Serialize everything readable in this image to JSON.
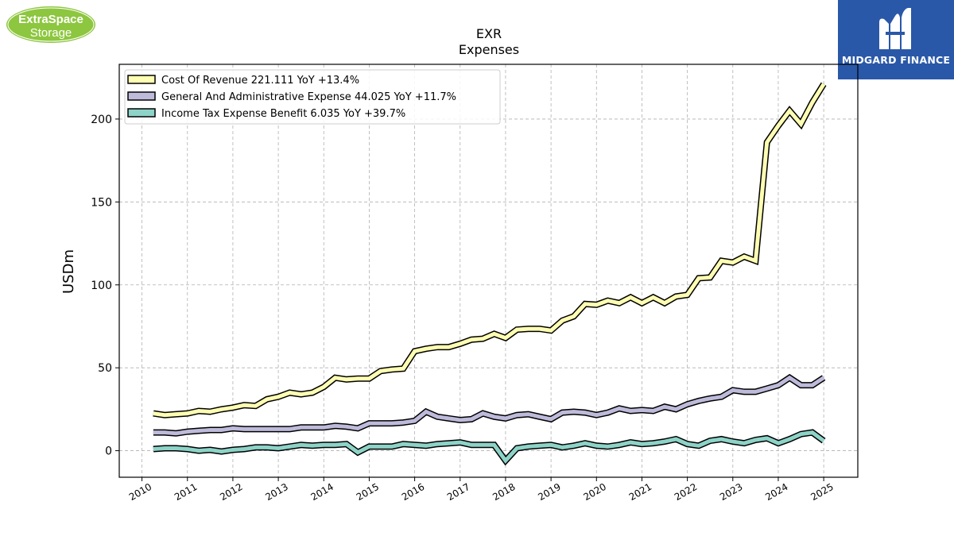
{
  "logos": {
    "left": {
      "line1": "ExtraSpace",
      "line2": "Storage",
      "color": "#8dc63f"
    },
    "right": {
      "text": "MIDGARD FINANCE",
      "color": "#2a58a8"
    }
  },
  "chart_data": {
    "type": "line",
    "title": "EXR",
    "subtitle": "Expenses",
    "ylabel": "USDm",
    "xlabel": "",
    "ylim": [
      -16,
      233
    ],
    "xlim": [
      2009.5,
      2025.75
    ],
    "yticks": [
      0,
      50,
      100,
      150,
      200
    ],
    "xticks": [
      "2010",
      "2011",
      "2012",
      "2013",
      "2014",
      "2015",
      "2016",
      "2017",
      "2018",
      "2019",
      "2020",
      "2021",
      "2022",
      "2023",
      "2024",
      "2025"
    ],
    "grid": true,
    "legend_position": "top-left",
    "x": [
      2010.25,
      2010.5,
      2010.75,
      2011.0,
      2011.25,
      2011.5,
      2011.75,
      2012.0,
      2012.25,
      2012.5,
      2012.75,
      2013.0,
      2013.25,
      2013.5,
      2013.75,
      2014.0,
      2014.25,
      2014.5,
      2014.75,
      2015.0,
      2015.25,
      2015.5,
      2015.75,
      2016.0,
      2016.25,
      2016.5,
      2016.75,
      2017.0,
      2017.25,
      2017.5,
      2017.75,
      2018.0,
      2018.25,
      2018.5,
      2018.75,
      2019.0,
      2019.25,
      2019.5,
      2019.75,
      2020.0,
      2020.25,
      2020.5,
      2020.75,
      2021.0,
      2021.25,
      2021.5,
      2021.75,
      2022.0,
      2022.25,
      2022.5,
      2022.75,
      2023.0,
      2023.25,
      2023.5,
      2023.75,
      2024.0,
      2024.25,
      2024.5,
      2024.75,
      2025.0
    ],
    "series": [
      {
        "name": "Cost Of Revenue",
        "legend": "Cost Of Revenue  221.111 YoY +13.4%",
        "color": "#ffffb3",
        "values": [
          22.5,
          21.5,
          22,
          22.5,
          24,
          23.5,
          25,
          26,
          27.5,
          27,
          31,
          32.5,
          35,
          34,
          35,
          38.5,
          44,
          43,
          43.5,
          43.5,
          48,
          49,
          49.5,
          60,
          61.5,
          62.5,
          62.5,
          64.5,
          67,
          67.5,
          70.5,
          68,
          73,
          73.5,
          73.5,
          72.5,
          78.5,
          81,
          88.5,
          88,
          90.5,
          89,
          92.5,
          89,
          92.5,
          89,
          93,
          94,
          104,
          104.5,
          114.5,
          113.5,
          117,
          114.5,
          186,
          196,
          205,
          197,
          210,
          221.1
        ]
      },
      {
        "name": "General And Administrative Expense",
        "legend": "General And Administrative Expense  44.025 YoY +11.7%",
        "color": "#bebada",
        "values": [
          11,
          11,
          10.5,
          11.5,
          12,
          12.5,
          12.5,
          13.5,
          13,
          13,
          13,
          13,
          13,
          14,
          14,
          14,
          15,
          14.5,
          13.5,
          16.5,
          16.5,
          16.5,
          17,
          18,
          23.5,
          20.5,
          19.5,
          18.5,
          19,
          22.5,
          20.5,
          19.5,
          21.5,
          22,
          20.5,
          19,
          23,
          23.5,
          23,
          21.5,
          23,
          25.5,
          24,
          24.5,
          24,
          26.5,
          25,
          28,
          30,
          31.5,
          32.5,
          36.5,
          35.5,
          35.5,
          37.5,
          39.5,
          44,
          39.5,
          39.5,
          44.0
        ]
      },
      {
        "name": "Income Tax Expense Benefit",
        "legend": "Income Tax Expense Benefit  6.035 YoY +39.7%",
        "color": "#8dd3c7",
        "values": [
          1,
          1.5,
          1.5,
          1,
          0,
          0.5,
          -0.5,
          0.5,
          1,
          2,
          2,
          1.5,
          2.5,
          3.5,
          3,
          3.5,
          3.5,
          4,
          -1,
          2.5,
          2.5,
          2.5,
          4,
          3.5,
          3,
          4,
          4.5,
          5,
          3.5,
          3.5,
          3.5,
          -6,
          1.5,
          2.5,
          3,
          3.5,
          2,
          3,
          4.5,
          3,
          2.5,
          3.5,
          5,
          4,
          4.5,
          5.5,
          7,
          4,
          3,
          6,
          7,
          5.5,
          4.5,
          6.5,
          7.5,
          4.5,
          7,
          10,
          11,
          6.0
        ]
      }
    ]
  }
}
